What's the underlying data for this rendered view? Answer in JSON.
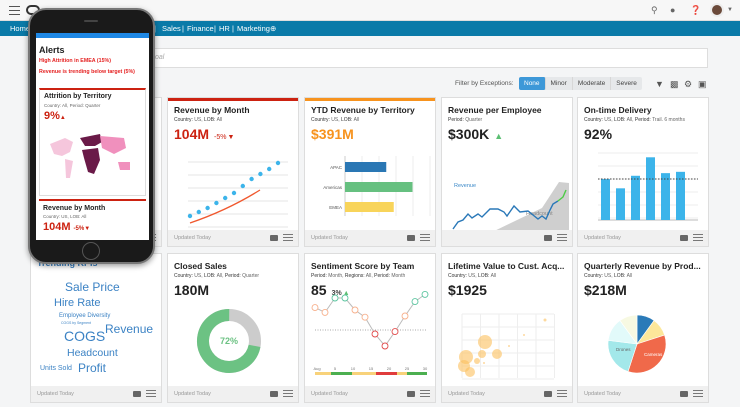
{
  "header": {
    "icons": [
      "search-icon",
      "bell-icon",
      "help-icon",
      "user-avatar"
    ]
  },
  "nav": {
    "items": [
      "Home",
      "Sales",
      "Finance",
      "HR",
      "Marketing"
    ],
    "add_icon": "plus-circle-icon"
  },
  "search": {
    "placeholder": "oal"
  },
  "filter": {
    "label": "Filter by Exceptions:",
    "options": [
      "None",
      "Minor",
      "Moderate",
      "Severe"
    ],
    "selected": "None"
  },
  "toolbar_icons": [
    "filter-icon",
    "chart-add-icon",
    "gear-icon",
    "comments-icon"
  ],
  "footer_text": "Updated Today",
  "cards": [
    {
      "title": "Revenue by Month",
      "sub_k1": "Country:",
      "sub_v1": "US,",
      "sub_k2": "LOB:",
      "sub_v2": "All",
      "kpi": "104M",
      "delta": "-5%",
      "accent": "#cc2211",
      "kpi_color": "#cc2211",
      "chart": {
        "type": "scatter+line",
        "points": [
          1,
          2,
          3,
          4,
          5,
          6,
          7,
          8,
          9,
          10,
          11
        ],
        "values": [
          10,
          14,
          18,
          23,
          28,
          33,
          40,
          47,
          52,
          57,
          63
        ]
      }
    },
    {
      "title": "YTD Revenue by Territory",
      "sub_k1": "Country:",
      "sub_v1": "US,",
      "sub_k2": "LOB:",
      "sub_v2": "All",
      "kpi": "$391M",
      "accent": "#f7931e",
      "kpi_color": "#f7931e",
      "chart": {
        "type": "bar",
        "categories": [
          "APAC",
          "Americas",
          "EMEA"
        ],
        "values": [
          55,
          90,
          65
        ],
        "colors": [
          "#2a77b4",
          "#66c080",
          "#f8d45a"
        ]
      }
    },
    {
      "title": "Revenue per Employee",
      "sub_k1": "Period:",
      "sub_v1": "Quarter",
      "kpi": "$300K",
      "delta_dir": "up",
      "chart": {
        "type": "area+line",
        "line_label": "Revenue",
        "area_label": "Headcount"
      }
    },
    {
      "title": "On-time Delivery",
      "sub_k1": "Country:",
      "sub_v1": "US,",
      "sub_k2": "LOB:",
      "sub_v2": "All,",
      "sub_k3": "Period:",
      "sub_v3": "Trail. 6 months",
      "kpi": "92%",
      "chart": {
        "type": "bar",
        "values": [
          62,
          48,
          67,
          95,
          71,
          73
        ],
        "target": 54,
        "color": "#3cb4ea"
      }
    },
    {
      "title": "Trending KPIs",
      "words": [
        "Sale Price",
        "Hire Rate",
        "Employee Diversity",
        "COGS by Segment",
        "Revenue",
        "COGS",
        "Headcount",
        "Units Sold",
        "Profit"
      ]
    },
    {
      "title": "Closed Sales",
      "sub_k1": "Country:",
      "sub_v1": "US,",
      "sub_k2": "LOB:",
      "sub_v2": "All,",
      "sub_k3": "Period:",
      "sub_v3": "Quarter",
      "kpi": "180M",
      "chart": {
        "type": "pie",
        "value": 72,
        "label": "72%",
        "color": "#6cc283"
      }
    },
    {
      "title": "Sentiment Score by Team",
      "sub_k1": "Period:",
      "sub_v1": "Month,",
      "sub_k2": "Regions:",
      "sub_v2": "All,",
      "sub_k3": "Period:",
      "sub_v3": "Month",
      "kpi": "85",
      "delta": "3%",
      "chart": {
        "type": "line",
        "x_labels": [
          "Aug",
          "5",
          "10",
          "15",
          "20",
          "25",
          "30"
        ],
        "values": [
          72,
          68,
          80,
          80,
          70,
          64,
          50,
          40,
          52,
          65,
          77,
          83
        ]
      }
    },
    {
      "title": "Lifetime Value to Cust. Acq...",
      "sub_k1": "Country:",
      "sub_v1": "US,",
      "sub_k2": "LOB:",
      "sub_v2": "All",
      "kpi": "$1925",
      "chart": {
        "type": "bubble"
      }
    },
    {
      "title": "Quarterly Revenue by Prod...",
      "sub_k1": "Country:",
      "sub_v1": "US,",
      "sub_k2": "LOB:",
      "sub_v2": "All",
      "kpi": "$218M",
      "chart": {
        "type": "pie",
        "labels": [
          "Drones",
          "Cameras"
        ],
        "values": [
          10,
          10,
          35,
          22,
          13,
          10
        ],
        "colors": [
          "#2a7ab8",
          "#fde79a",
          "#f0694a",
          "#a3e8ea",
          "#e2fafa",
          "#f7f9e2"
        ]
      }
    }
  ],
  "phone": {
    "alerts_title": "Alerts",
    "alerts": [
      "High Attrition in EMEA (15%)",
      "Revenue is trending below target (5%)"
    ],
    "card1": {
      "title": "Attrition by Territory",
      "sub_k1": "Country:",
      "sub_v1": "All,",
      "sub_k2": "Period:",
      "sub_v2": "Quarter",
      "kpi": "9%"
    },
    "card2": {
      "title": "Revenue by Month",
      "sub_k1": "Country:",
      "sub_v1": "US,",
      "sub_k2": "LOB:",
      "sub_v2": "All",
      "kpi": "104M",
      "delta": "-5%"
    }
  }
}
